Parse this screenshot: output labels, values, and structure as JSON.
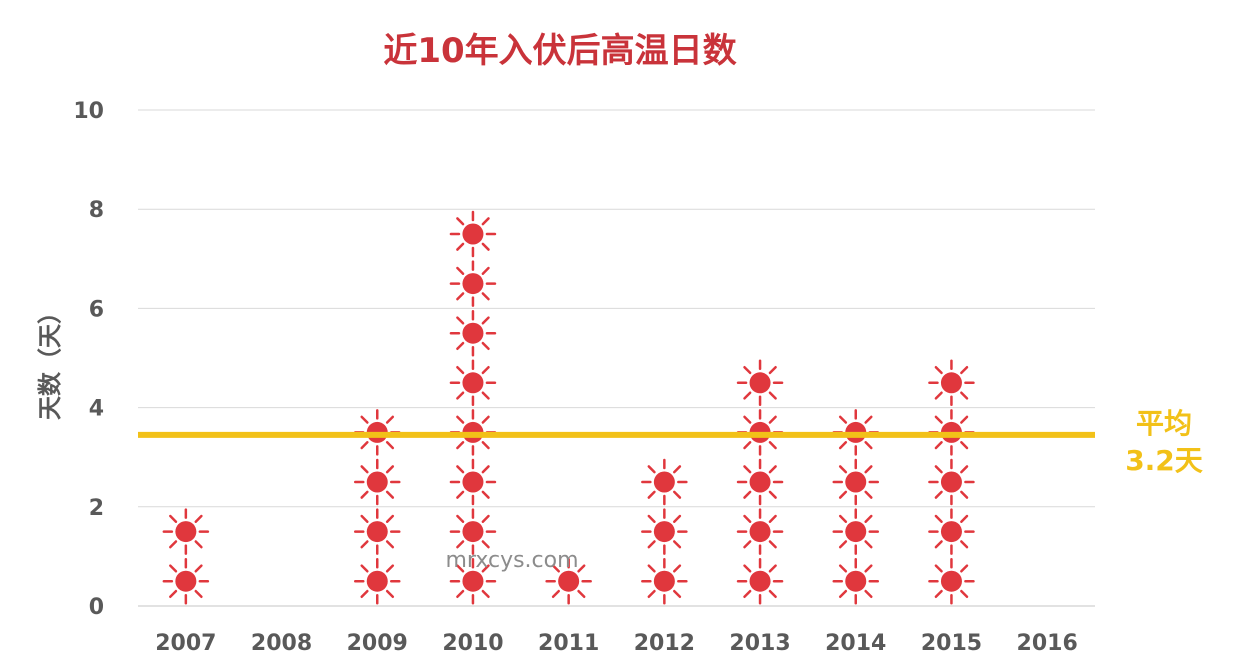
{
  "chart_data": {
    "type": "scatter",
    "title": "近10年入伏后高温日数",
    "ylabel": "天数（天）",
    "xlabel": "",
    "ylim": [
      0,
      10
    ],
    "yticks": [
      "0",
      "2",
      "4",
      "6",
      "8",
      "10"
    ],
    "categories": [
      "2007",
      "2008",
      "2009",
      "2010",
      "2011",
      "2012",
      "2013",
      "2014",
      "2015",
      "2016"
    ],
    "values": [
      2,
      0,
      4,
      8,
      1,
      3,
      5,
      4,
      5,
      0
    ],
    "marker": "sun-icon",
    "grid": true,
    "average": {
      "value": 3.2,
      "label_line1": "平均",
      "label_line2": "3.2天"
    },
    "colors": {
      "marker": "#e0373d",
      "average_line": "#f2c118",
      "title": "#c9333a",
      "axis_text": "#595959",
      "grid": "#d9d9d9"
    }
  },
  "watermark": "mrxcys.com"
}
